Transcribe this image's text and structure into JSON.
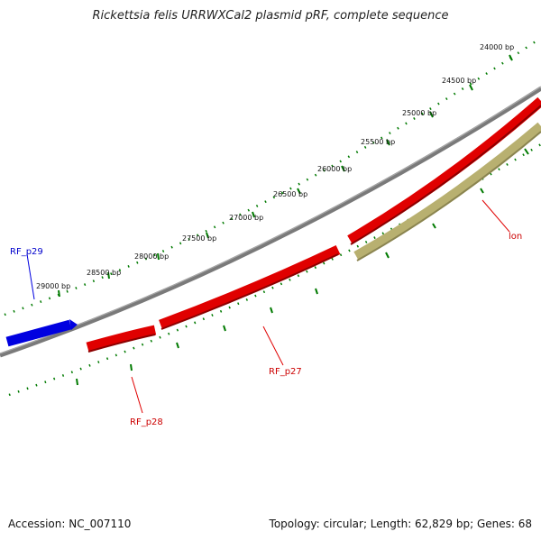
{
  "title": "Rickettsia felis URRWXCal2 plasmid pRF, complete sequence",
  "footer": {
    "accession": "Accession: NC_007110",
    "summary": "Topology: circular; Length: 62,829 bp; Genes: 68"
  },
  "tick_labels": [
    "24000 bp",
    "24500 bp",
    "25000 bp",
    "25500 bp",
    "26000 bp",
    "26500 bp",
    "27000 bp",
    "27500 bp",
    "28000 bp",
    "28500 bp",
    "29000 bp"
  ],
  "genes": [
    {
      "name": "RF_p29",
      "color": "#0000e0"
    },
    {
      "name": "RF_p28",
      "color": "#e00000"
    },
    {
      "name": "RF_p27",
      "color": "#e00000"
    },
    {
      "name": "lon",
      "color": "#b8b070"
    },
    {
      "name": "(unlabeled gene)",
      "color": "#e00000"
    }
  ],
  "colors": {
    "backbone": "#808080",
    "ticks": "#007a00",
    "forward_gene": "#e00000",
    "forward_gene_label": "#c00000",
    "lon": "#b8b070",
    "rf_p29": "#0000e0"
  }
}
